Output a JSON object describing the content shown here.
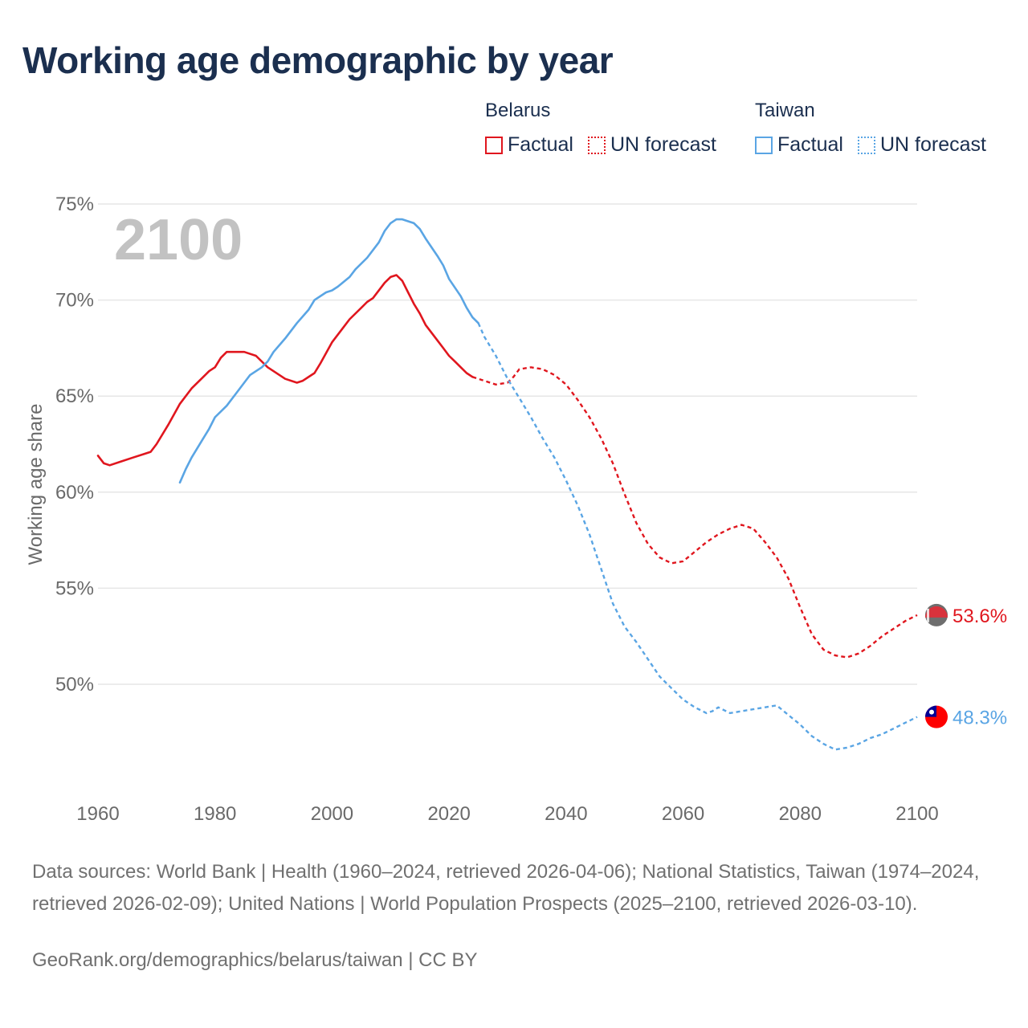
{
  "title": "Working age demographic by year",
  "legend": {
    "groups": [
      {
        "country": "Belarus",
        "factual_label": "Factual",
        "forecast_label": "UN forecast",
        "color": "#e0161e"
      },
      {
        "country": "Taiwan",
        "factual_label": "Factual",
        "forecast_label": "UN forecast",
        "color": "#5aa5e4"
      }
    ]
  },
  "footer": {
    "sources": "Data sources: World Bank | Health (1960–2024, retrieved 2026-04-06); National Statistics, Taiwan (1974–2024, retrieved 2026-02-09); United Nations | World Population Prospects (2025–2100, retrieved 2026-03-10).",
    "link": "GeoRank.org/demographics/belarus/taiwan | CC BY"
  },
  "chart_data": {
    "type": "line",
    "title": "Working age demographic by year",
    "year_label": "2100",
    "ylabel": "Working age share",
    "xlabel": "",
    "xlim": [
      1960,
      2100
    ],
    "ylim": [
      44.5,
      75
    ],
    "x_ticks": [
      "1960",
      "1980",
      "2000",
      "2020",
      "2040",
      "2060",
      "2080",
      "2100"
    ],
    "y_ticks": [
      "50%",
      "55%",
      "60%",
      "65%",
      "70%",
      "75%"
    ],
    "y_tick_values": [
      50,
      55,
      60,
      65,
      70,
      75
    ],
    "x_tick_values": [
      1960,
      1980,
      2000,
      2020,
      2040,
      2060,
      2080,
      2100
    ],
    "series": [
      {
        "name": "Belarus",
        "color": "#e0161e",
        "end_label": "53.6%",
        "factual": [
          [
            1960,
            61.9
          ],
          [
            1961,
            61.5
          ],
          [
            1962,
            61.4
          ],
          [
            1964,
            61.6
          ],
          [
            1966,
            61.8
          ],
          [
            1968,
            62.0
          ],
          [
            1969,
            62.1
          ],
          [
            1970,
            62.5
          ],
          [
            1972,
            63.5
          ],
          [
            1974,
            64.6
          ],
          [
            1976,
            65.4
          ],
          [
            1978,
            66.0
          ],
          [
            1979,
            66.3
          ],
          [
            1980,
            66.5
          ],
          [
            1981,
            67.0
          ],
          [
            1982,
            67.3
          ],
          [
            1984,
            67.3
          ],
          [
            1985,
            67.3
          ],
          [
            1987,
            67.1
          ],
          [
            1989,
            66.5
          ],
          [
            1991,
            66.1
          ],
          [
            1992,
            65.9
          ],
          [
            1994,
            65.7
          ],
          [
            1995,
            65.8
          ],
          [
            1997,
            66.2
          ],
          [
            1998,
            66.7
          ],
          [
            2000,
            67.8
          ],
          [
            2002,
            68.6
          ],
          [
            2003,
            69.0
          ],
          [
            2005,
            69.6
          ],
          [
            2006,
            69.9
          ],
          [
            2007,
            70.1
          ],
          [
            2009,
            70.9
          ],
          [
            2010,
            71.2
          ],
          [
            2011,
            71.3
          ],
          [
            2012,
            71.0
          ],
          [
            2013,
            70.4
          ],
          [
            2014,
            69.8
          ],
          [
            2015,
            69.3
          ],
          [
            2016,
            68.7
          ],
          [
            2018,
            67.9
          ],
          [
            2019,
            67.5
          ],
          [
            2020,
            67.1
          ],
          [
            2021,
            66.8
          ],
          [
            2022,
            66.5
          ],
          [
            2023,
            66.2
          ],
          [
            2024,
            66.0
          ]
        ],
        "forecast": [
          [
            2024,
            66.0
          ],
          [
            2026,
            65.8
          ],
          [
            2028,
            65.6
          ],
          [
            2030,
            65.7
          ],
          [
            2031,
            66.0
          ],
          [
            2032,
            66.4
          ],
          [
            2034,
            66.5
          ],
          [
            2036,
            66.4
          ],
          [
            2038,
            66.1
          ],
          [
            2040,
            65.6
          ],
          [
            2042,
            64.8
          ],
          [
            2044,
            63.9
          ],
          [
            2046,
            62.8
          ],
          [
            2048,
            61.5
          ],
          [
            2050,
            59.9
          ],
          [
            2052,
            58.4
          ],
          [
            2054,
            57.3
          ],
          [
            2056,
            56.6
          ],
          [
            2058,
            56.3
          ],
          [
            2060,
            56.4
          ],
          [
            2062,
            56.9
          ],
          [
            2064,
            57.4
          ],
          [
            2066,
            57.8
          ],
          [
            2068,
            58.1
          ],
          [
            2070,
            58.3
          ],
          [
            2072,
            58.1
          ],
          [
            2074,
            57.4
          ],
          [
            2076,
            56.6
          ],
          [
            2078,
            55.5
          ],
          [
            2080,
            54.0
          ],
          [
            2082,
            52.6
          ],
          [
            2084,
            51.8
          ],
          [
            2086,
            51.5
          ],
          [
            2088,
            51.4
          ],
          [
            2090,
            51.6
          ],
          [
            2092,
            52.0
          ],
          [
            2094,
            52.5
          ],
          [
            2096,
            52.9
          ],
          [
            2098,
            53.3
          ],
          [
            2100,
            53.6
          ]
        ]
      },
      {
        "name": "Taiwan",
        "color": "#5aa5e4",
        "end_label": "48.3%",
        "factual": [
          [
            1974,
            60.5
          ],
          [
            1975,
            61.2
          ],
          [
            1976,
            61.8
          ],
          [
            1978,
            62.8
          ],
          [
            1979,
            63.3
          ],
          [
            1980,
            63.9
          ],
          [
            1982,
            64.5
          ],
          [
            1984,
            65.3
          ],
          [
            1985,
            65.7
          ],
          [
            1986,
            66.1
          ],
          [
            1988,
            66.5
          ],
          [
            1989,
            66.8
          ],
          [
            1990,
            67.3
          ],
          [
            1992,
            68.0
          ],
          [
            1994,
            68.8
          ],
          [
            1996,
            69.5
          ],
          [
            1997,
            70.0
          ],
          [
            1999,
            70.4
          ],
          [
            2000,
            70.5
          ],
          [
            2001,
            70.7
          ],
          [
            2003,
            71.2
          ],
          [
            2004,
            71.6
          ],
          [
            2006,
            72.2
          ],
          [
            2008,
            73.0
          ],
          [
            2009,
            73.6
          ],
          [
            2010,
            74.0
          ],
          [
            2011,
            74.2
          ],
          [
            2012,
            74.2
          ],
          [
            2013,
            74.1
          ],
          [
            2014,
            74.0
          ],
          [
            2015,
            73.7
          ],
          [
            2016,
            73.2
          ],
          [
            2018,
            72.3
          ],
          [
            2019,
            71.8
          ],
          [
            2020,
            71.1
          ],
          [
            2022,
            70.2
          ],
          [
            2023,
            69.6
          ],
          [
            2024,
            69.1
          ],
          [
            2025,
            68.8
          ]
        ],
        "forecast": [
          [
            2025,
            68.8
          ],
          [
            2026,
            68.1
          ],
          [
            2028,
            67.1
          ],
          [
            2030,
            65.9
          ],
          [
            2032,
            64.9
          ],
          [
            2034,
            63.9
          ],
          [
            2036,
            62.8
          ],
          [
            2038,
            61.8
          ],
          [
            2040,
            60.6
          ],
          [
            2042,
            59.3
          ],
          [
            2044,
            57.8
          ],
          [
            2046,
            56.0
          ],
          [
            2048,
            54.2
          ],
          [
            2050,
            53.0
          ],
          [
            2052,
            52.2
          ],
          [
            2054,
            51.3
          ],
          [
            2056,
            50.4
          ],
          [
            2058,
            49.8
          ],
          [
            2060,
            49.2
          ],
          [
            2062,
            48.8
          ],
          [
            2064,
            48.5
          ],
          [
            2065,
            48.6
          ],
          [
            2066,
            48.8
          ],
          [
            2068,
            48.5
          ],
          [
            2070,
            48.6
          ],
          [
            2072,
            48.7
          ],
          [
            2074,
            48.8
          ],
          [
            2076,
            48.9
          ],
          [
            2078,
            48.4
          ],
          [
            2080,
            47.9
          ],
          [
            2082,
            47.3
          ],
          [
            2084,
            46.9
          ],
          [
            2086,
            46.6
          ],
          [
            2088,
            46.7
          ],
          [
            2090,
            46.9
          ],
          [
            2092,
            47.2
          ],
          [
            2094,
            47.4
          ],
          [
            2096,
            47.7
          ],
          [
            2098,
            48.0
          ],
          [
            2100,
            48.3
          ]
        ]
      }
    ]
  }
}
